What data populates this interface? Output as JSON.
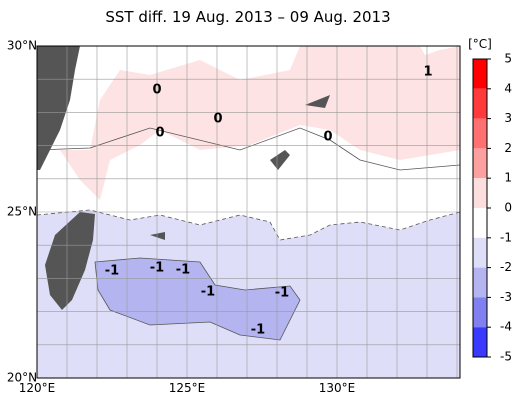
{
  "title": "SST diff. 19 Aug. 2013 – 09 Aug. 2013",
  "lat_labels": [
    "30°N",
    "25°N",
    "20°N"
  ],
  "lon_labels": [
    "120°E",
    "125°E",
    "130°E"
  ],
  "colorbar": {
    "unit": "[°C]",
    "ticks": [
      5,
      4,
      3,
      2,
      1,
      0,
      -1,
      -2,
      -3,
      -4,
      -5
    ],
    "colors": [
      "#ff0000",
      "#ff3a3a",
      "#ff7070",
      "#ffa0a0",
      "#fcdede",
      "#ffffff",
      "#dedef8",
      "#b4b4f0",
      "#8080f0",
      "#3a3aff"
    ]
  },
  "contour_labels": [
    "0",
    "0",
    "0",
    "0",
    "1",
    "-1",
    "-1",
    "-1",
    "-1",
    "-1",
    "-1"
  ]
}
